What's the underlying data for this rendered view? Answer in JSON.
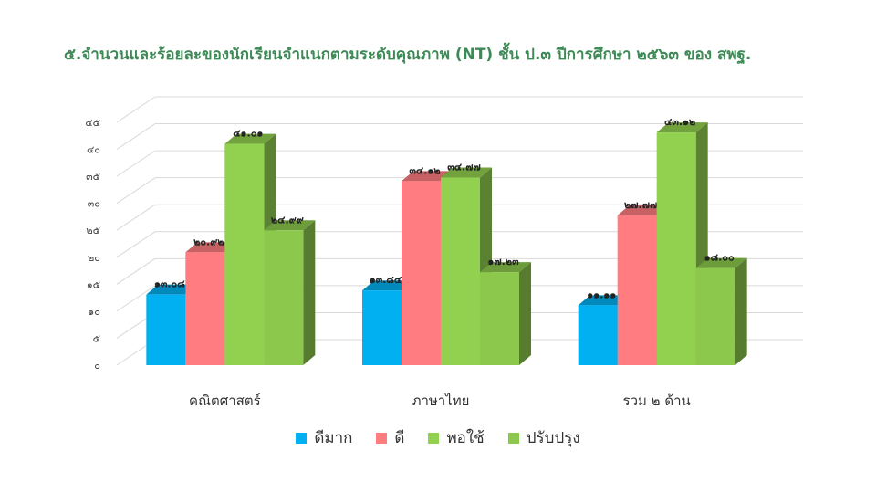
{
  "title": "๕.จำนวนและร้อยละของนักเรียนจำแนกตามระดับคุณภาพ (NT) ชั้น ป.๓ ปีการศึกษา ๒๕๖๓ ของ สพฐ.",
  "chart_data": {
    "type": "bar",
    "title": "๕.จำนวนและร้อยละของนักเรียนจำแนกตามระดับคุณภาพ (NT) ชั้น ป.๓ ปีการศึกษา ๒๕๖๓ ของ สพฐ.",
    "categories": [
      "คณิตศาสตร์",
      "ภาษาไทย",
      "รวม ๒ ด้าน"
    ],
    "ylim": [
      0,
      45
    ],
    "yticks": [
      0,
      5,
      10,
      15,
      20,
      25,
      30,
      35,
      40,
      45
    ],
    "ytick_labels": [
      "๐",
      "๕",
      "๑๐",
      "๑๕",
      "๒๐",
      "๒๕",
      "๓๐",
      "๓๕",
      "๔๐",
      "๔๕"
    ],
    "grid": true,
    "legend_position": "bottom",
    "series": [
      {
        "name": "ดีมาก",
        "color": "#00b0f0",
        "values": [
          13.08,
          13.84,
          11.11
        ],
        "labels": [
          "๑๓.๐๘",
          "๑๓.๘๔",
          "๑๑.๑๑"
        ]
      },
      {
        "name": "ดี",
        "color": "#ff7c80",
        "values": [
          20.92,
          34.12,
          27.77
        ],
        "labels": [
          "๒๐.๙๒",
          "๓๔.๑๒",
          "๒๗.๗๗"
        ]
      },
      {
        "name": "พอใช้",
        "color": "#92d050",
        "values": [
          41.01,
          34.77,
          43.12
        ],
        "labels": [
          "๔๑.๐๑",
          "๓๔.๗๗",
          "๔๓.๑๒"
        ]
      },
      {
        "name": "ปรับปรุง",
        "color": "#8cc84b",
        "values": [
          24.99,
          17.23,
          18.0
        ],
        "labels": [
          "๒๔.๙๙",
          "๑๗.๒๓",
          "๑๘.๐๐"
        ]
      }
    ]
  }
}
